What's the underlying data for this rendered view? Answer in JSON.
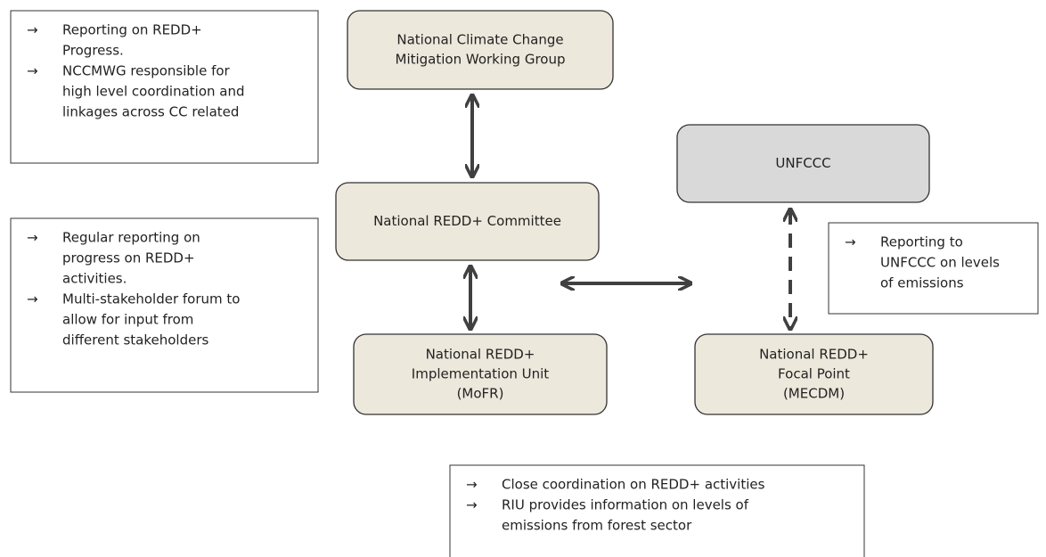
{
  "nodes": [
    {
      "lines": [
        "National Climate Change",
        "Mitigation Working Group"
      ]
    },
    {
      "lines": [
        "National REDD+ Committee"
      ]
    },
    {
      "lines": [
        "UNFCCC"
      ]
    },
    {
      "lines": [
        "National REDD+",
        "Implementation Unit",
        "(MoFR)"
      ]
    },
    {
      "lines": [
        "National REDD+",
        "Focal Point",
        "(MECDM)"
      ]
    }
  ],
  "notes": [
    {
      "items": [
        {
          "bullet": "→",
          "lines": [
            "Reporting on REDD+",
            "Progress."
          ]
        },
        {
          "bullet": "→",
          "lines": [
            "NCCMWG responsible for",
            "high level coordination and",
            "linkages across CC related"
          ]
        }
      ]
    },
    {
      "items": [
        {
          "bullet": "→",
          "lines": [
            "Regular reporting on",
            "progress on REDD+",
            "activities."
          ]
        },
        {
          "bullet": "→",
          "lines": [
            "Multi-stakeholder forum to",
            "allow for input from",
            "different stakeholders"
          ]
        }
      ]
    },
    {
      "items": [
        {
          "bullet": "→",
          "lines": [
            "Reporting to",
            "UNFCCC on levels",
            "of emissions"
          ]
        }
      ]
    },
    {
      "items": [
        {
          "bullet": "→",
          "lines": [
            "Close coordination on REDD+ activities"
          ]
        },
        {
          "bullet": "→",
          "lines": [
            "RIU provides information on levels of",
            "emissions from forest sector"
          ]
        }
      ]
    }
  ]
}
